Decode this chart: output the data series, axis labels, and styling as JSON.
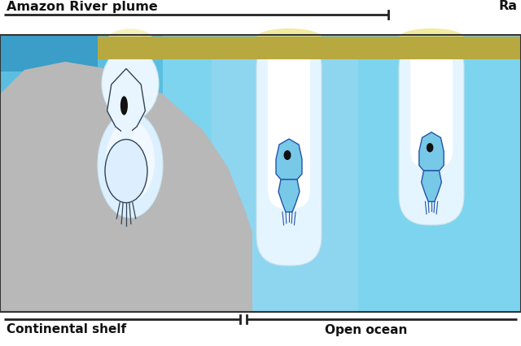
{
  "title_left": "Amazon River plume",
  "title_right": "Ra",
  "label_bottom_left": "Continental shelf",
  "label_bottom_right": "Open ocean",
  "bg_ocean_light": "#7dd4ee",
  "bg_ocean_mid": "#5bbee0",
  "bg_ocean_dark_left": "#4aaed4",
  "shelf_color": "#b8b8b8",
  "surface_strip_color": "#b8a840",
  "plume_white": "#e8f6ff",
  "plume_glow": "#f5f0d0",
  "text_color": "#111111",
  "frame_color": "#333333",
  "fig_width": 6.4,
  "fig_height": 4.26,
  "dpi": 100
}
